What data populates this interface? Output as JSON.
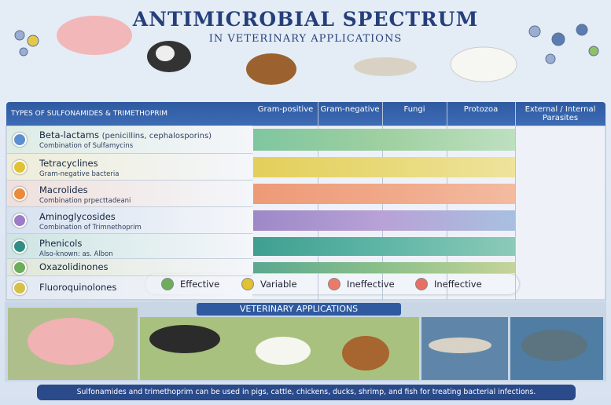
{
  "header": {
    "title": "ANTIMICROBIAL SPECTRUM",
    "subtitle": "IN VETERINARY APPLICATIONS"
  },
  "table": {
    "corner": "TYPES OF SULFONAMIDES & TRIMETHOPRIM",
    "columns": [
      "Gram-positive",
      "Gram-negative",
      "Fungi",
      "Protozoa",
      "External / Internal Parasites"
    ],
    "rows": [
      {
        "name": "Beta-lactams",
        "note": "(penicillins, cephalosporins)",
        "detail": "Combination of Sulfamycins"
      },
      {
        "name": "Tetracyclines",
        "detail": "Gram-negative bacteria"
      },
      {
        "name": "Macrolides",
        "detail": "Combination prpecttadeani"
      },
      {
        "name": "Aminoglycosides",
        "detail": "Combination of Trimnethoprim"
      },
      {
        "name": "Phenicols",
        "detail": "Also-known: as. Albon"
      },
      {
        "name": "Oxazolidinones"
      },
      {
        "name": "Fluoroquinolones"
      }
    ]
  },
  "legend": [
    "Effective",
    "Variable",
    "Ineffective",
    "Ineffective"
  ],
  "applications": {
    "title": "VETERINARY APPLICATIONS",
    "footer": "Sulfonamides and trimethoprim can be used in pigs, cattle, chickens, ducks, shrimp, and fish for treating bacterial infections."
  }
}
